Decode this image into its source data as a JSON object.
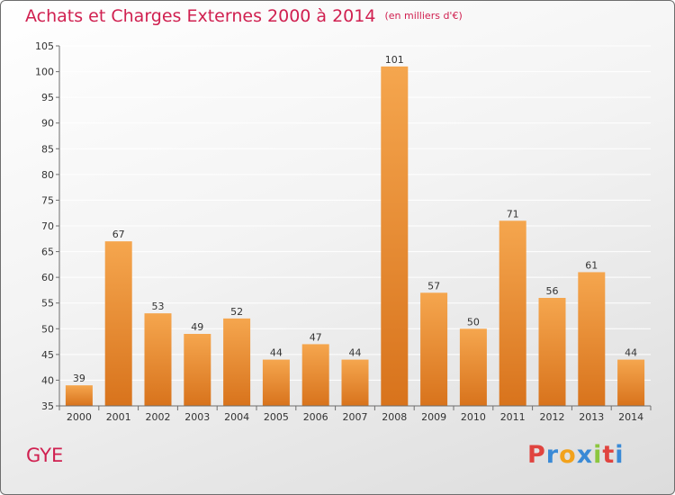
{
  "title": "Achats et Charges Externes 2000 à 2014",
  "unit": "(en milliers d'€)",
  "place": "GYE",
  "logo": {
    "text": "Proxiti",
    "colors": [
      "#e0443f",
      "#3a8ad6",
      "#f2a21c",
      "#3a8ad6",
      "#8cc63f",
      "#e0443f",
      "#3a8ad6"
    ]
  },
  "chart_data": {
    "type": "bar",
    "categories": [
      "2000",
      "2001",
      "2002",
      "2003",
      "2004",
      "2005",
      "2006",
      "2007",
      "2008",
      "2009",
      "2010",
      "2011",
      "2012",
      "2013",
      "2014"
    ],
    "values": [
      39,
      67,
      53,
      49,
      52,
      44,
      47,
      44,
      101,
      57,
      50,
      71,
      56,
      61,
      44
    ],
    "ylim": [
      35,
      105
    ],
    "yticks": [
      35,
      40,
      45,
      50,
      55,
      60,
      65,
      70,
      75,
      80,
      85,
      90,
      95,
      100,
      105
    ],
    "xlabel": "",
    "ylabel": "",
    "grid": true,
    "colors": {
      "bar_top": "#f5a64e",
      "bar_bottom": "#d8731c",
      "grid": "#ffffff",
      "axis": "#6e6e6e"
    }
  }
}
